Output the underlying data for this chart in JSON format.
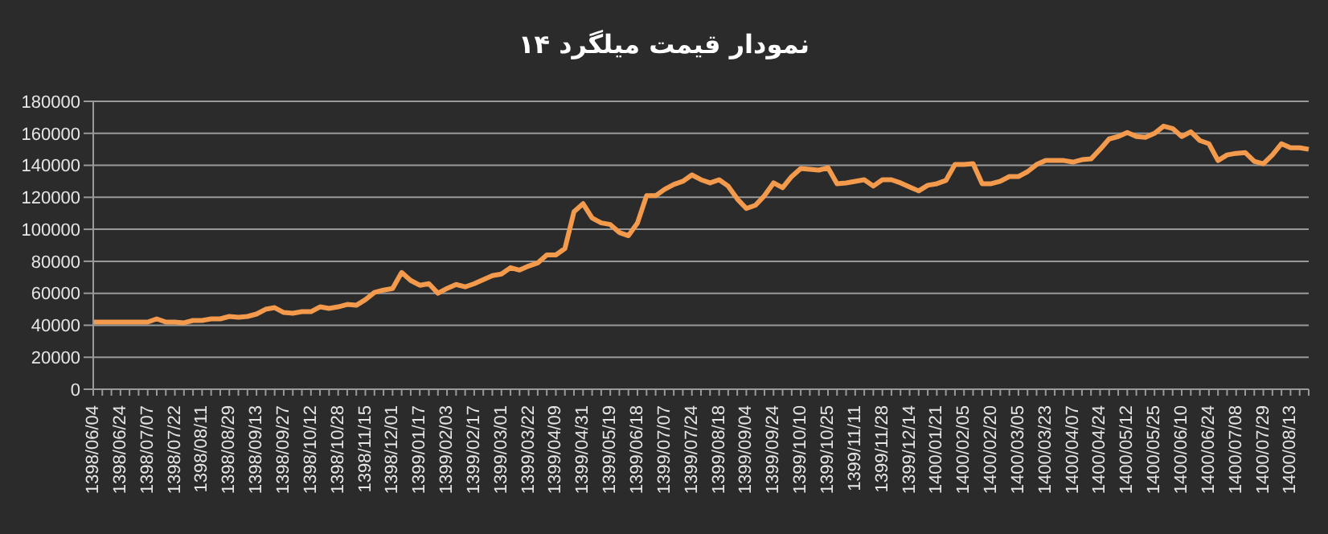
{
  "chart_data": {
    "type": "line",
    "title": "نمودار قیمت میلگرد ۱۴",
    "categories": [
      "1398/06/04",
      null,
      null,
      "1398/06/24",
      null,
      null,
      "1398/07/07",
      null,
      null,
      "1398/07/22",
      null,
      null,
      "1398/08/11",
      null,
      null,
      "1398/08/29",
      null,
      null,
      "1398/09/13",
      null,
      null,
      "1398/09/27",
      null,
      null,
      "1398/10/12",
      null,
      null,
      "1398/10/28",
      null,
      null,
      "1398/11/15",
      null,
      null,
      "1398/12/01",
      null,
      null,
      "1399/01/17",
      null,
      null,
      "1399/02/03",
      null,
      null,
      "1399/02/17",
      null,
      null,
      "1399/03/01",
      null,
      null,
      "1399/03/22",
      null,
      null,
      "1399/04/09",
      null,
      null,
      "1399/04/31",
      null,
      null,
      "1399/05/19",
      null,
      null,
      "1399/06/18",
      null,
      null,
      "1399/07/07",
      null,
      null,
      "1399/07/24",
      null,
      null,
      "1399/08/18",
      null,
      null,
      "1399/09/04",
      null,
      null,
      "1399/09/24",
      null,
      null,
      "1399/10/10",
      null,
      null,
      "1399/10/25",
      null,
      null,
      "1399/11/11",
      null,
      null,
      "1399/11/28",
      null,
      null,
      "1399/12/14",
      null,
      null,
      "1400/01/21",
      null,
      null,
      "1400/02/05",
      null,
      null,
      "1400/02/20",
      null,
      null,
      "1400/03/05",
      null,
      null,
      "1400/03/23",
      null,
      null,
      "1400/04/07",
      null,
      null,
      "1400/04/24",
      null,
      null,
      "1400/05/12",
      null,
      null,
      "1400/05/25",
      null,
      null,
      "1400/06/10",
      null,
      null,
      "1400/06/24",
      null,
      null,
      "1400/07/08",
      null,
      null,
      "1400/07/29",
      null,
      null,
      "1400/08/13",
      null,
      null
    ],
    "series": [
      {
        "color": "#f39a4c",
        "values": [
          42000,
          42000,
          42000,
          42000,
          42000,
          42000,
          42000,
          44000,
          42000,
          42000,
          41500,
          43000,
          43000,
          44000,
          44000,
          45500,
          45000,
          45500,
          47000,
          50000,
          51000,
          48000,
          47500,
          48500,
          48500,
          51500,
          50500,
          51500,
          53000,
          52500,
          56000,
          60500,
          62000,
          63000,
          73000,
          68000,
          65000,
          66000,
          60000,
          63000,
          65500,
          64000,
          66000,
          68500,
          71000,
          72000,
          76000,
          74500,
          77000,
          79000,
          84000,
          84000,
          88000,
          111000,
          116000,
          107000,
          104000,
          103000,
          98000,
          96000,
          104000,
          121000,
          121000,
          125000,
          128000,
          130000,
          134000,
          131000,
          129000,
          131000,
          127000,
          119000,
          113000,
          115000,
          121000,
          129000,
          126000,
          133000,
          138000,
          137500,
          137000,
          138500,
          128500,
          129000,
          130000,
          131000,
          127000,
          131000,
          131000,
          129000,
          126500,
          124000,
          127500,
          128500,
          130500,
          140500,
          140500,
          141000,
          128500,
          128500,
          130000,
          133000,
          133000,
          136000,
          140500,
          143000,
          143000,
          143000,
          142000,
          143500,
          144000,
          150000,
          156500,
          158000,
          160500,
          158000,
          157500,
          160000,
          164500,
          163000,
          158000,
          161000,
          155500,
          153500,
          143000,
          146500,
          147500,
          148000,
          142500,
          141000,
          146500,
          153500,
          151000,
          151000,
          150000
        ]
      }
    ],
    "ylim": [
      0,
      180000
    ],
    "yticks": [
      0,
      20000,
      40000,
      60000,
      80000,
      100000,
      120000,
      140000,
      160000,
      180000
    ],
    "grid": "y",
    "legend": false,
    "marker": "none",
    "line_style": "solid"
  }
}
